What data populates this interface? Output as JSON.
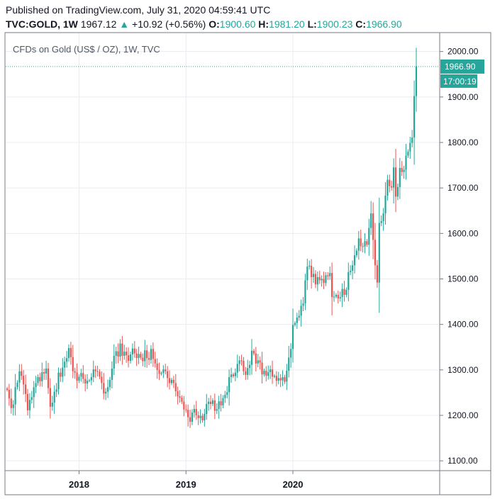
{
  "header": {
    "published": "Published on TradingView.com, July 31, 2020 04:59:41 UTC",
    "symbol": "TVC:GOLD, 1W",
    "last": "1967.12",
    "change": "+10.92 (+0.56%)",
    "open_label": "O:",
    "open": "1900.60",
    "high_label": "H:",
    "high": "1981.20",
    "low_label": "L:",
    "low": "1900.23",
    "close_label": "C:",
    "close": "1966.90"
  },
  "chart_data": {
    "type": "candlestick",
    "title": "CFDs on Gold (US$ / OZ), 1W, TVC",
    "ylim": [
      1080,
      2040
    ],
    "y_ticks": [
      "2000.00",
      "1900.00",
      "1800.00",
      "1700.00",
      "1600.00",
      "1500.00",
      "1400.00",
      "1300.00",
      "1200.00",
      "1100.00"
    ],
    "x_ticks": [
      "2018",
      "2019",
      "2020"
    ],
    "last_price_label": "1966.90",
    "countdown_label": "17:00:19",
    "colors": {
      "up": "#26a69a",
      "down": "#ef5350",
      "grid": "#e9ecf2",
      "axis": "#787b86"
    },
    "weekly_closes": [
      1256,
      1237,
      1216,
      1224,
      1262,
      1272,
      1297,
      1287,
      1268,
      1247,
      1211,
      1234,
      1240,
      1262,
      1271,
      1284,
      1275,
      1295,
      1292,
      1303,
      1260,
      1219,
      1228,
      1252,
      1257,
      1294,
      1285,
      1305,
      1318,
      1326,
      1348,
      1328,
      1297,
      1294,
      1276,
      1285,
      1293,
      1280,
      1270,
      1276,
      1277,
      1284,
      1301,
      1297,
      1296,
      1285,
      1271,
      1248,
      1252,
      1262,
      1278,
      1303,
      1331,
      1341,
      1329,
      1358,
      1331,
      1340,
      1332,
      1320,
      1334,
      1347,
      1336,
      1326,
      1335,
      1327,
      1319,
      1343,
      1326,
      1322,
      1346,
      1324,
      1314,
      1300,
      1291,
      1293,
      1301,
      1297,
      1282,
      1271,
      1278,
      1271,
      1253,
      1242,
      1239,
      1230,
      1213,
      1212,
      1196,
      1186,
      1206,
      1214,
      1200,
      1194,
      1199,
      1189,
      1203,
      1225,
      1230,
      1225,
      1233,
      1210,
      1214,
      1231,
      1222,
      1238,
      1245,
      1251,
      1284,
      1290,
      1286,
      1294,
      1313,
      1321,
      1320,
      1297,
      1289,
      1304,
      1311,
      1342,
      1336,
      1314,
      1321,
      1316,
      1290,
      1298,
      1287,
      1295,
      1301,
      1285,
      1287,
      1276,
      1282,
      1277,
      1284,
      1274,
      1298,
      1327,
      1346,
      1399,
      1403,
      1415,
      1419,
      1441,
      1446,
      1497,
      1527,
      1529,
      1504,
      1511,
      1488,
      1504,
      1497,
      1500,
      1491,
      1508,
      1506,
      1513,
      1460,
      1461,
      1465,
      1457,
      1460,
      1478,
      1465,
      1476,
      1515,
      1518,
      1530,
      1552,
      1562,
      1589,
      1572,
      1571,
      1583,
      1575,
      1612,
      1644,
      1586,
      1530,
      1492,
      1623,
      1627,
      1644,
      1683,
      1718,
      1704,
      1701,
      1745,
      1681,
      1702,
      1744,
      1735,
      1740,
      1771,
      1780,
      1799,
      1811,
      1902,
      1967
    ]
  }
}
